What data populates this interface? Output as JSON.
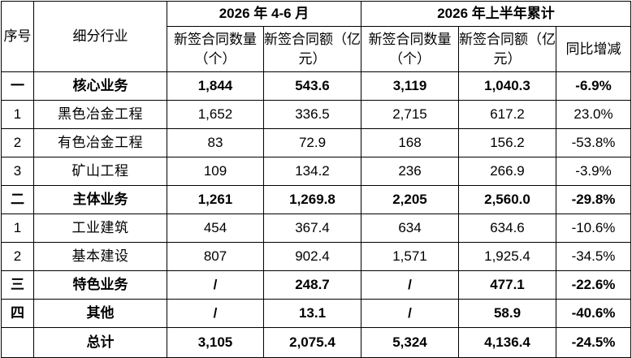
{
  "header": {
    "seq": "序号",
    "industry": "细分行业",
    "group1": "2026 年 4-6 月",
    "group2": "2026 年上半年累计",
    "cols": [
      "新签合同数量（个）",
      "新签合同额（亿元）",
      "新签合同数量（个）",
      "新签合同额（亿元）",
      "同比增减"
    ]
  },
  "rows": [
    {
      "seq": "一",
      "name": "核心业务",
      "q_count": "1,844",
      "q_amount": "543.6",
      "h_count": "3,119",
      "h_amount": "1,040.3",
      "yoy": "-6.9%",
      "bold": true
    },
    {
      "seq": "1",
      "name": "黑色冶金工程",
      "q_count": "1,652",
      "q_amount": "336.5",
      "h_count": "2,715",
      "h_amount": "617.2",
      "yoy": "23.0%",
      "bold": false
    },
    {
      "seq": "2",
      "name": "有色冶金工程",
      "q_count": "83",
      "q_amount": "72.9",
      "h_count": "168",
      "h_amount": "156.2",
      "yoy": "-53.8%",
      "bold": false
    },
    {
      "seq": "3",
      "name": "矿山工程",
      "q_count": "109",
      "q_amount": "134.2",
      "h_count": "236",
      "h_amount": "266.9",
      "yoy": "-3.9%",
      "bold": false
    },
    {
      "seq": "二",
      "name": "主体业务",
      "q_count": "1,261",
      "q_amount": "1,269.8",
      "h_count": "2,205",
      "h_amount": "2,560.0",
      "yoy": "-29.8%",
      "bold": true
    },
    {
      "seq": "1",
      "name": "工业建筑",
      "q_count": "454",
      "q_amount": "367.4",
      "h_count": "634",
      "h_amount": "634.6",
      "yoy": "-10.6%",
      "bold": false
    },
    {
      "seq": "2",
      "name": "基本建设",
      "q_count": "807",
      "q_amount": "902.4",
      "h_count": "1,571",
      "h_amount": "1,925.4",
      "yoy": "-34.5%",
      "bold": false
    },
    {
      "seq": "三",
      "name": "特色业务",
      "q_count": "/",
      "q_amount": "248.7",
      "h_count": "/",
      "h_amount": "477.1",
      "yoy": "-22.6%",
      "bold": true
    },
    {
      "seq": "四",
      "name": "其他",
      "q_count": "/",
      "q_amount": "13.1",
      "h_count": "/",
      "h_amount": "58.9",
      "yoy": "-40.6%",
      "bold": true
    },
    {
      "seq": "",
      "name": "总计",
      "q_count": "3,105",
      "q_amount": "2,075.4",
      "h_count": "5,324",
      "h_amount": "4,136.4",
      "yoy": "-24.5%",
      "bold": true
    }
  ]
}
